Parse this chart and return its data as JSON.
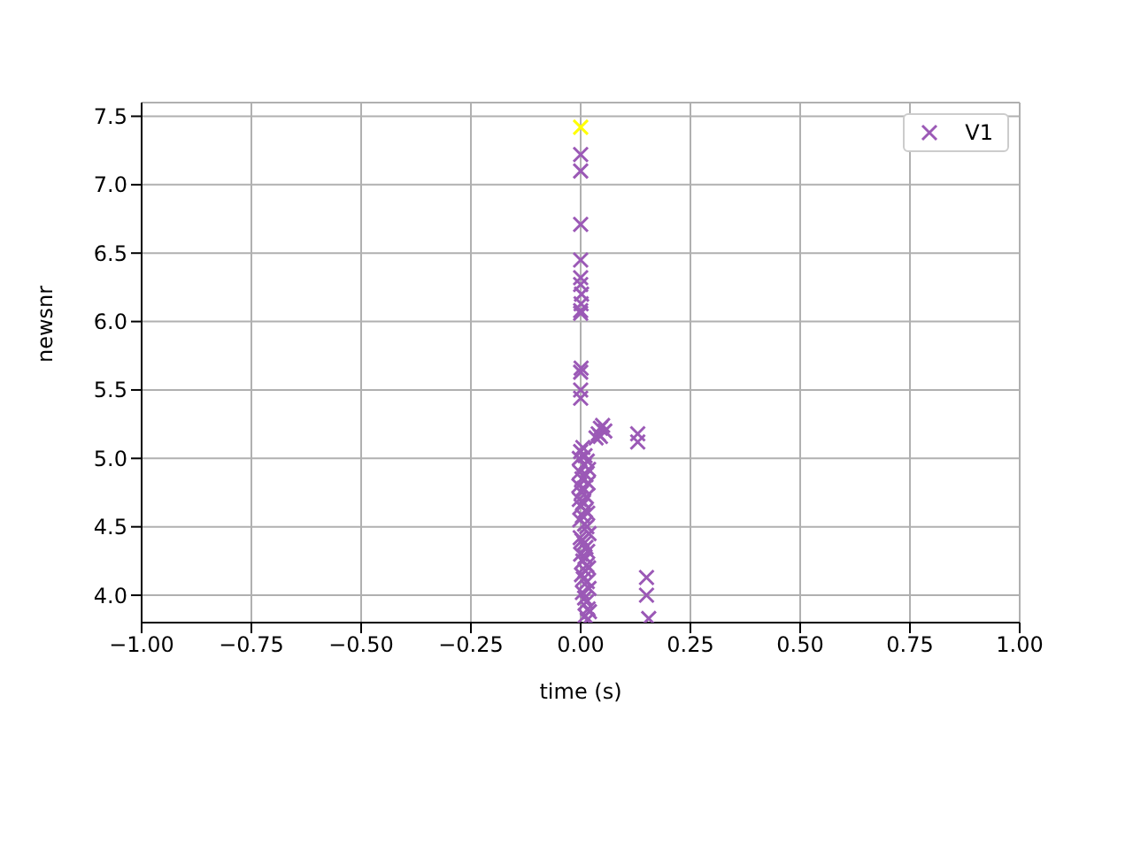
{
  "chart_data": {
    "type": "scatter",
    "xlabel": "time (s)",
    "ylabel": "newsnr",
    "series": [
      {
        "name": "V1",
        "color": "#9b59b6",
        "x": [
          0.0,
          0.0,
          0.0,
          0.0,
          0.0,
          0.0,
          0.002,
          0.001,
          0.0,
          0.0,
          0.001,
          0.0,
          0.0,
          0.0,
          0.04,
          0.045,
          0.05,
          0.055,
          0.035,
          0.045,
          0.13,
          0.13,
          0.15,
          0.15,
          0.155,
          -0.003,
          0.0,
          0.005,
          0.01,
          0.015,
          -0.002,
          0.003,
          0.008,
          0.012,
          0.018,
          -0.004,
          0.002,
          0.007,
          0.013,
          0.017,
          -0.003,
          0.001,
          0.006,
          0.011,
          0.016,
          -0.002,
          0.004,
          0.009,
          0.014,
          0.019,
          -0.001,
          0.003,
          0.008,
          0.012,
          0.016,
          0.0,
          0.005,
          0.01,
          0.014,
          0.018,
          0.002,
          0.006,
          0.01,
          0.015,
          0.019,
          0.004,
          0.009,
          0.013,
          0.017,
          0.02,
          0.01,
          0.015
        ],
        "values": [
          7.22,
          7.1,
          6.71,
          6.45,
          6.32,
          6.27,
          6.2,
          6.13,
          6.08,
          6.06,
          5.66,
          5.63,
          5.5,
          5.44,
          5.18,
          5.22,
          5.24,
          5.2,
          5.15,
          5.16,
          5.18,
          5.12,
          4.13,
          4.0,
          3.83,
          5.0,
          5.05,
          5.08,
          5.02,
          4.98,
          4.9,
          4.85,
          4.95,
          4.88,
          4.92,
          4.8,
          4.75,
          4.78,
          4.72,
          4.82,
          4.7,
          4.65,
          4.68,
          4.62,
          4.6,
          4.55,
          4.58,
          4.52,
          4.5,
          4.45,
          4.42,
          4.4,
          4.38,
          4.35,
          4.32,
          4.3,
          4.25,
          4.28,
          4.22,
          4.2,
          4.15,
          4.12,
          4.18,
          4.1,
          4.05,
          4.02,
          3.98,
          3.95,
          3.9,
          3.88,
          3.85,
          3.82
        ]
      },
      {
        "color": "#ffff00",
        "x": [
          0.0
        ],
        "values": [
          7.42
        ]
      }
    ],
    "xlim": [
      -1,
      1
    ],
    "ylim": [
      3.8,
      7.6
    ],
    "xticks": [
      {
        "value": -1,
        "label": "−1.00"
      },
      {
        "value": -0.75,
        "label": "−0.75"
      },
      {
        "value": -0.5,
        "label": "−0.50"
      },
      {
        "value": -0.25,
        "label": "−0.25"
      },
      {
        "value": 0,
        "label": "0.00"
      },
      {
        "value": 0.25,
        "label": "0.25"
      },
      {
        "value": 0.5,
        "label": "0.50"
      },
      {
        "value": 0.75,
        "label": "0.75"
      },
      {
        "value": 1,
        "label": "1.00"
      }
    ],
    "yticks": [
      {
        "value": 4,
        "label": "4.0"
      },
      4.5,
      {
        "value": 5,
        "label": "5.0"
      },
      5.5,
      {
        "value": 6,
        "label": "6.0"
      },
      6.5,
      {
        "value": 7,
        "label": "7.0"
      },
      7.5
    ],
    "grid": true,
    "legend": "top right",
    "marker": "cross"
  }
}
